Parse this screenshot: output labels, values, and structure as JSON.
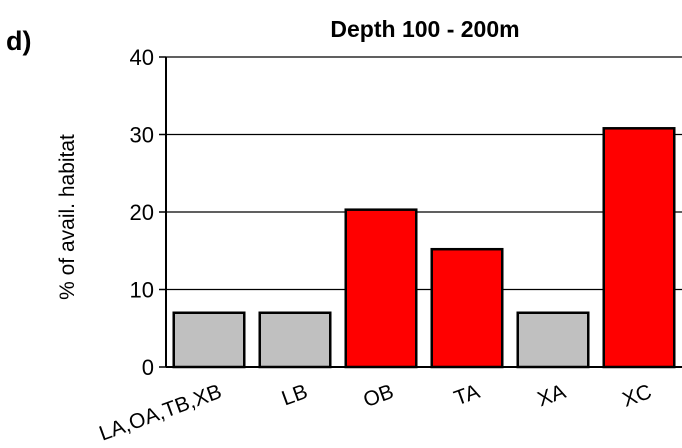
{
  "panel_label": "d)",
  "chart_data": {
    "type": "bar",
    "title": "Depth 100 - 200m",
    "xlabel": "",
    "ylabel": "% of avail. habitat",
    "categories": [
      "LA,OA,TB,XB",
      "LB",
      "OB",
      "TA",
      "XA",
      "XC"
    ],
    "values": [
      7,
      7,
      20.3,
      15.2,
      7,
      30.8
    ],
    "ylim": [
      0,
      40
    ],
    "yticks": [
      0,
      10,
      20,
      30,
      40
    ],
    "grid": true,
    "legend": "none",
    "bar_colors": [
      "#c0c0c0",
      "#c0c0c0",
      "#ff0000",
      "#ff0000",
      "#c0c0c0",
      "#ff0000"
    ],
    "bar_outline": "#000000"
  }
}
